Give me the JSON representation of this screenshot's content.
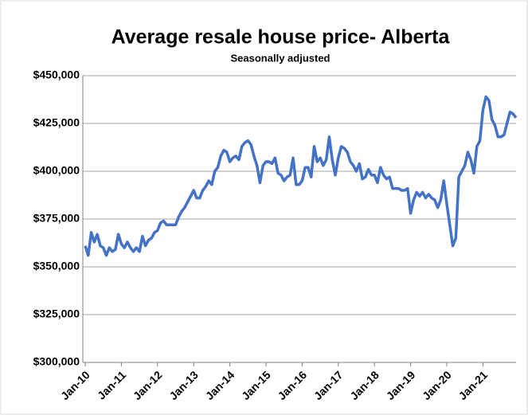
{
  "chart_data": {
    "type": "line",
    "title": "Average resale house price- Alberta",
    "subtitle": "Seasonally adjusted",
    "categories": [
      "Jan-10",
      null,
      null,
      null,
      null,
      null,
      null,
      null,
      null,
      null,
      null,
      null,
      "Jan-11",
      null,
      null,
      null,
      null,
      null,
      null,
      null,
      null,
      null,
      null,
      null,
      "Jan-12",
      null,
      null,
      null,
      null,
      null,
      null,
      null,
      null,
      null,
      null,
      null,
      "Jan-13",
      null,
      null,
      null,
      null,
      null,
      null,
      null,
      null,
      null,
      null,
      null,
      "Jan-14",
      null,
      null,
      null,
      null,
      null,
      null,
      null,
      null,
      null,
      null,
      null,
      "Jan-15",
      null,
      null,
      null,
      null,
      null,
      null,
      null,
      null,
      null,
      null,
      null,
      "Jan-16",
      null,
      null,
      null,
      null,
      null,
      null,
      null,
      null,
      null,
      null,
      null,
      "Jan-17",
      null,
      null,
      null,
      null,
      null,
      null,
      null,
      null,
      null,
      null,
      null,
      "Jan-18",
      null,
      null,
      null,
      null,
      null,
      null,
      null,
      null,
      null,
      null,
      null,
      "Jan-19",
      null,
      null,
      null,
      null,
      null,
      null,
      null,
      null,
      null,
      null,
      null,
      "Jan-20",
      null,
      null,
      null,
      null,
      null,
      null,
      null,
      null,
      null,
      null,
      null,
      "Jan-21",
      null,
      null,
      null,
      null,
      null,
      null,
      null,
      null,
      null,
      null,
      null
    ],
    "series": [
      {
        "name": "Average resale house price",
        "color": "#4472c4",
        "values": [
          361000,
          356000,
          368000,
          363000,
          367000,
          361000,
          360000,
          356000,
          360000,
          358000,
          359000,
          367000,
          362000,
          360000,
          363000,
          360000,
          358000,
          360000,
          358000,
          366000,
          361000,
          364000,
          365000,
          368000,
          369000,
          373000,
          374000,
          372000,
          372000,
          372000,
          372000,
          376000,
          379000,
          381000,
          384000,
          387000,
          390000,
          386000,
          386000,
          390000,
          392000,
          395000,
          393000,
          400000,
          402000,
          408000,
          411000,
          410000,
          405000,
          407000,
          408000,
          406000,
          413000,
          415000,
          416000,
          414000,
          408000,
          403000,
          394000,
          403000,
          405000,
          405000,
          404000,
          407000,
          399000,
          398000,
          395000,
          397000,
          398000,
          407000,
          393000,
          393000,
          395000,
          402000,
          402000,
          397000,
          413000,
          405000,
          407000,
          403000,
          406000,
          418000,
          406000,
          398000,
          407000,
          413000,
          412000,
          410000,
          405000,
          403000,
          400000,
          404000,
          396000,
          397000,
          401000,
          398000,
          398000,
          394000,
          402000,
          398000,
          396000,
          397000,
          391000,
          391000,
          391000,
          390000,
          390000,
          391000,
          378000,
          385000,
          389000,
          387000,
          389000,
          386000,
          388000,
          386000,
          385000,
          381000,
          385000,
          395000,
          383000,
          372000,
          361000,
          365000,
          397000,
          400000,
          403000,
          410000,
          406000,
          399000,
          413000,
          416000,
          432000,
          439000,
          437000,
          427000,
          424000,
          418000,
          418000,
          419000,
          425000,
          431000,
          430000,
          428000
        ]
      }
    ],
    "ylim": [
      300000,
      450000
    ],
    "yticks": [
      {
        "value": 300000,
        "label": "$300,000"
      },
      {
        "value": 325000,
        "label": "$325,000"
      },
      {
        "value": 350000,
        "label": "$350,000"
      },
      {
        "value": 375000,
        "label": "$375,000"
      },
      {
        "value": 400000,
        "label": "$400,000"
      },
      {
        "value": 425000,
        "label": "$425,000"
      },
      {
        "value": 450000,
        "label": "$450,000"
      }
    ],
    "grid": true
  }
}
